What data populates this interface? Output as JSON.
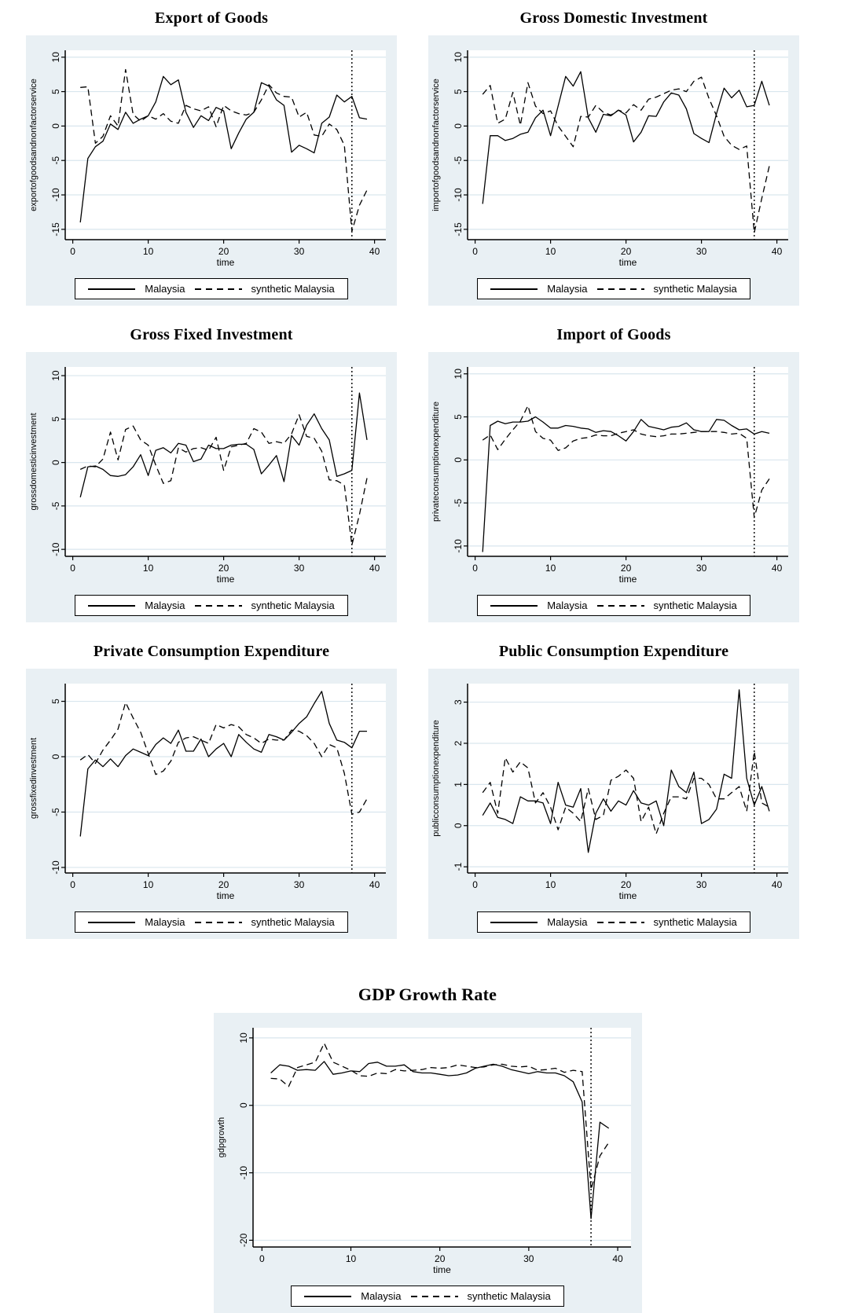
{
  "legend": {
    "series1": "Malaysia",
    "series2": "synthetic Malaysia"
  },
  "colors": {
    "panel_bg": "#e9f0f4",
    "plot_bg": "#ffffff",
    "grid": "#d9e6ee",
    "line": "#000000"
  },
  "time_values": [
    1,
    2,
    3,
    4,
    5,
    6,
    7,
    8,
    9,
    10,
    11,
    12,
    13,
    14,
    15,
    16,
    17,
    18,
    19,
    20,
    21,
    22,
    23,
    24,
    25,
    26,
    27,
    28,
    29,
    30,
    31,
    32,
    33,
    34,
    35,
    36,
    37,
    38,
    39
  ],
  "chart_data": [
    {
      "type": "line",
      "title": "Export of Goods",
      "xlabel": "time",
      "ylabel": "exportofgoodsandnonfactorservice",
      "xticks": [
        0,
        10,
        20,
        30,
        40
      ],
      "yticks": [
        10,
        5,
        0,
        -5,
        -10,
        -15
      ],
      "xlim": [
        -1,
        41.5
      ],
      "ylim": [
        -16.5,
        11
      ],
      "vline_x": 37,
      "grid": true,
      "legend_position": "bottom",
      "series": [
        {
          "name": "Malaysia",
          "style": "solid",
          "values": [
            -14.0,
            -4.7,
            -3.0,
            -2.2,
            0.3,
            -0.5,
            2.0,
            0.4,
            1.0,
            1.5,
            3.5,
            7.2,
            6.0,
            6.7,
            2.0,
            -0.2,
            1.5,
            0.8,
            2.7,
            2.2,
            -3.3,
            -1.0,
            1.0,
            2.0,
            6.3,
            5.8,
            3.8,
            3.0,
            -3.8,
            -2.8,
            -3.3,
            -3.9,
            0.4,
            1.3,
            4.5,
            3.5,
            4.3,
            1.2,
            1.0
          ]
        },
        {
          "name": "synthetic Malaysia",
          "style": "dashed",
          "values": [
            5.6,
            5.7,
            -2.5,
            -1.5,
            1.5,
            0.0,
            8.2,
            1.7,
            0.7,
            1.5,
            1.0,
            1.8,
            0.7,
            0.4,
            3.0,
            2.5,
            2.2,
            2.8,
            -0.1,
            3.0,
            2.2,
            1.8,
            1.6,
            2.0,
            3.8,
            6.0,
            4.8,
            4.3,
            4.2,
            1.3,
            2.0,
            -1.3,
            -1.5,
            0.3,
            -0.5,
            -2.8,
            -15.3,
            -11.5,
            -9.3
          ]
        }
      ]
    },
    {
      "type": "line",
      "title": "Gross Domestic Investment",
      "xlabel": "time",
      "ylabel": "importofgoodsandnonfactorservice",
      "xticks": [
        0,
        10,
        20,
        30,
        40
      ],
      "yticks": [
        10,
        5,
        0,
        -5,
        -10,
        -15
      ],
      "xlim": [
        -1,
        41.5
      ],
      "ylim": [
        -16.5,
        11
      ],
      "vline_x": 37,
      "grid": true,
      "legend_position": "bottom",
      "series": [
        {
          "name": "Malaysia",
          "style": "solid",
          "values": [
            -11.3,
            -1.4,
            -1.4,
            -2.1,
            -1.8,
            -1.2,
            -0.9,
            1.2,
            2.3,
            -1.4,
            2.9,
            7.2,
            5.8,
            7.9,
            1.2,
            -0.9,
            1.7,
            1.5,
            2.3,
            1.6,
            -2.3,
            -0.9,
            1.5,
            1.4,
            3.5,
            4.8,
            4.5,
            2.5,
            -1.1,
            -1.8,
            -2.4,
            1.8,
            5.5,
            4.1,
            5.2,
            2.8,
            3.0,
            6.5,
            3.0
          ]
        },
        {
          "name": "synthetic Malaysia",
          "style": "dashed",
          "values": [
            4.6,
            5.9,
            0.4,
            1.0,
            4.9,
            0.1,
            6.3,
            2.9,
            1.8,
            2.2,
            0.0,
            -1.5,
            -3.0,
            1.4,
            1.3,
            3.0,
            2.0,
            1.6,
            2.3,
            1.9,
            3.1,
            2.3,
            3.9,
            4.2,
            4.7,
            5.2,
            5.4,
            5.0,
            6.5,
            7.1,
            4.0,
            1.5,
            -1.5,
            -2.8,
            -3.4,
            -2.9,
            -15.5,
            -10.5,
            -5.8
          ]
        }
      ]
    },
    {
      "type": "line",
      "title": "Gross Fixed Investment",
      "xlabel": "time",
      "ylabel": "grossdomesticinvestment",
      "xticks": [
        0,
        10,
        20,
        30,
        40
      ],
      "yticks": [
        10,
        5,
        0,
        -5,
        -10
      ],
      "xlim": [
        -1,
        41.5
      ],
      "ylim": [
        -10.8,
        11
      ],
      "vline_x": 37,
      "grid": true,
      "legend_position": "bottom",
      "series": [
        {
          "name": "Malaysia",
          "style": "solid",
          "values": [
            -4.0,
            -0.5,
            -0.4,
            -0.8,
            -1.5,
            -1.6,
            -1.4,
            -0.5,
            0.9,
            -1.5,
            1.4,
            1.7,
            1.1,
            2.2,
            2.0,
            0.1,
            0.4,
            2.0,
            1.6,
            1.6,
            2.0,
            2.1,
            2.1,
            1.5,
            -1.3,
            -0.3,
            0.8,
            -2.2,
            3.1,
            2.0,
            4.3,
            5.6,
            3.9,
            2.6,
            -1.6,
            -1.3,
            -0.9,
            8.0,
            2.6
          ]
        },
        {
          "name": "synthetic Malaysia",
          "style": "dashed",
          "values": [
            -0.8,
            -0.4,
            -0.5,
            0.4,
            3.5,
            0.3,
            3.8,
            4.2,
            2.6,
            2.0,
            -0.3,
            -2.4,
            -2.1,
            1.7,
            1.2,
            1.6,
            1.7,
            1.4,
            2.9,
            -0.9,
            1.8,
            2.0,
            2.2,
            3.9,
            3.5,
            2.2,
            2.4,
            2.2,
            3.3,
            5.5,
            3.0,
            2.8,
            1.3,
            -2.0,
            -2.1,
            -2.6,
            -9.5,
            -6.0,
            -1.8
          ]
        }
      ]
    },
    {
      "type": "line",
      "title": "Import of Goods",
      "xlabel": "time",
      "ylabel": "privateconsumptionexpenditure",
      "xticks": [
        0,
        10,
        20,
        30,
        40
      ],
      "yticks": [
        10,
        5,
        0,
        -5,
        -10
      ],
      "xlim": [
        -1,
        41.5
      ],
      "ylim": [
        -11.2,
        10.8
      ],
      "vline_x": 37,
      "grid": true,
      "legend_position": "bottom",
      "series": [
        {
          "name": "Malaysia",
          "style": "solid",
          "values": [
            -10.7,
            4.0,
            4.5,
            4.2,
            4.4,
            4.4,
            4.5,
            5.0,
            4.4,
            3.7,
            3.7,
            4.0,
            3.9,
            3.7,
            3.6,
            3.2,
            3.4,
            3.3,
            2.8,
            2.2,
            3.3,
            4.7,
            3.9,
            3.7,
            3.5,
            3.8,
            3.9,
            4.3,
            3.5,
            3.3,
            3.3,
            4.7,
            4.6,
            4.0,
            3.5,
            3.6,
            3.0,
            3.3,
            3.1
          ]
        },
        {
          "name": "synthetic Malaysia",
          "style": "dashed",
          "values": [
            2.3,
            2.9,
            1.2,
            2.4,
            3.5,
            4.5,
            6.3,
            3.3,
            2.5,
            2.3,
            1.1,
            1.4,
            2.2,
            2.5,
            2.6,
            2.9,
            2.8,
            2.8,
            3.1,
            3.3,
            3.5,
            3.0,
            2.8,
            2.7,
            2.8,
            3.0,
            3.0,
            3.1,
            3.2,
            3.3,
            3.3,
            3.3,
            3.2,
            3.0,
            3.1,
            2.5,
            -6.7,
            -3.5,
            -2.2
          ]
        }
      ]
    },
    {
      "type": "line",
      "title": "Private Consumption Expenditure",
      "xlabel": "time",
      "ylabel": "grossfixedinvestment",
      "xticks": [
        0,
        10,
        20,
        30,
        40
      ],
      "yticks": [
        5,
        0,
        -5,
        -10
      ],
      "xlim": [
        -1,
        41.5
      ],
      "ylim": [
        -10.5,
        6.6
      ],
      "vline_x": 37,
      "grid": true,
      "legend_position": "bottom",
      "series": [
        {
          "name": "Malaysia",
          "style": "solid",
          "values": [
            -7.2,
            -1.1,
            -0.3,
            -0.9,
            -0.2,
            -0.9,
            0.1,
            0.7,
            0.4,
            0.1,
            1.1,
            1.7,
            1.2,
            2.4,
            0.5,
            0.5,
            1.6,
            0.0,
            0.7,
            1.2,
            0.0,
            2.0,
            1.3,
            0.7,
            0.4,
            2.0,
            1.8,
            1.5,
            2.2,
            3.0,
            3.6,
            4.8,
            5.9,
            3.0,
            1.5,
            1.3,
            0.8,
            2.3,
            2.3
          ]
        },
        {
          "name": "synthetic Malaysia",
          "style": "dashed",
          "values": [
            -0.3,
            0.2,
            -0.6,
            0.6,
            1.5,
            2.5,
            4.9,
            3.5,
            2.2,
            0.3,
            -1.6,
            -1.3,
            -0.4,
            1.3,
            1.7,
            1.8,
            1.5,
            1.2,
            2.9,
            2.6,
            2.9,
            2.7,
            2.0,
            1.7,
            1.2,
            1.6,
            1.5,
            1.5,
            2.4,
            2.3,
            1.9,
            1.2,
            0.0,
            1.1,
            0.8,
            -1.5,
            -5.2,
            -5.0,
            -3.8
          ]
        }
      ]
    },
    {
      "type": "line",
      "title": "Public Consumption Expenditure",
      "xlabel": "time",
      "ylabel": "publicconsumptionexpenditure",
      "xticks": [
        0,
        10,
        20,
        30,
        40
      ],
      "yticks": [
        3,
        2,
        1,
        0,
        -1
      ],
      "xlim": [
        -1,
        41.5
      ],
      "ylim": [
        -1.15,
        3.45
      ],
      "vline_x": 37,
      "grid": true,
      "legend_position": "bottom",
      "series": [
        {
          "name": "Malaysia",
          "style": "solid",
          "values": [
            0.25,
            0.55,
            0.2,
            0.15,
            0.05,
            0.7,
            0.6,
            0.6,
            0.55,
            0.05,
            1.05,
            0.5,
            0.45,
            0.9,
            -0.65,
            0.3,
            0.65,
            0.35,
            0.6,
            0.5,
            0.85,
            0.55,
            0.5,
            0.6,
            0.0,
            1.35,
            0.95,
            0.8,
            1.3,
            0.05,
            0.15,
            0.4,
            1.25,
            1.15,
            3.3,
            1.15,
            0.5,
            0.95,
            0.35
          ]
        },
        {
          "name": "synthetic Malaysia",
          "style": "dashed",
          "values": [
            0.8,
            1.05,
            0.3,
            1.65,
            1.3,
            1.55,
            1.4,
            0.55,
            0.8,
            0.45,
            -0.1,
            0.45,
            0.3,
            0.1,
            0.9,
            0.15,
            0.25,
            1.1,
            1.2,
            1.35,
            1.15,
            0.1,
            0.45,
            -0.2,
            0.3,
            0.7,
            0.7,
            0.65,
            1.15,
            1.15,
            1.0,
            0.65,
            0.65,
            0.8,
            0.95,
            0.35,
            1.8,
            0.55,
            0.45
          ]
        }
      ]
    },
    {
      "type": "line",
      "title": "GDP Growth Rate",
      "xlabel": "time",
      "ylabel": "gdpgrowth",
      "xticks": [
        0,
        10,
        20,
        30,
        40
      ],
      "yticks": [
        10,
        0,
        -10,
        -20
      ],
      "xlim": [
        -1,
        41.5
      ],
      "ylim": [
        -21,
        11.5
      ],
      "vline_x": 37,
      "grid": true,
      "legend_position": "bottom",
      "series": [
        {
          "name": "Malaysia",
          "style": "solid",
          "values": [
            4.8,
            6.0,
            5.8,
            5.2,
            5.3,
            5.2,
            6.5,
            4.6,
            4.8,
            5.1,
            5.0,
            6.2,
            6.4,
            5.8,
            5.8,
            6.0,
            5.0,
            4.8,
            4.8,
            4.6,
            4.4,
            4.5,
            4.8,
            5.5,
            5.8,
            6.1,
            5.8,
            5.3,
            5.0,
            4.7,
            5.0,
            4.8,
            4.8,
            4.4,
            3.5,
            0.5,
            -16.8,
            -2.5,
            -3.4
          ]
        },
        {
          "name": "synthetic Malaysia",
          "style": "dashed",
          "values": [
            4.0,
            3.9,
            2.8,
            5.6,
            6.0,
            6.4,
            9.2,
            6.4,
            5.8,
            5.2,
            4.4,
            4.3,
            4.8,
            4.7,
            5.3,
            5.1,
            5.2,
            5.3,
            5.6,
            5.5,
            5.6,
            6.0,
            5.8,
            5.6,
            5.7,
            6.0,
            6.1,
            5.8,
            5.7,
            5.8,
            5.2,
            5.3,
            5.5,
            4.9,
            5.2,
            5.0,
            -12.5,
            -7.5,
            -5.5
          ]
        }
      ]
    }
  ]
}
